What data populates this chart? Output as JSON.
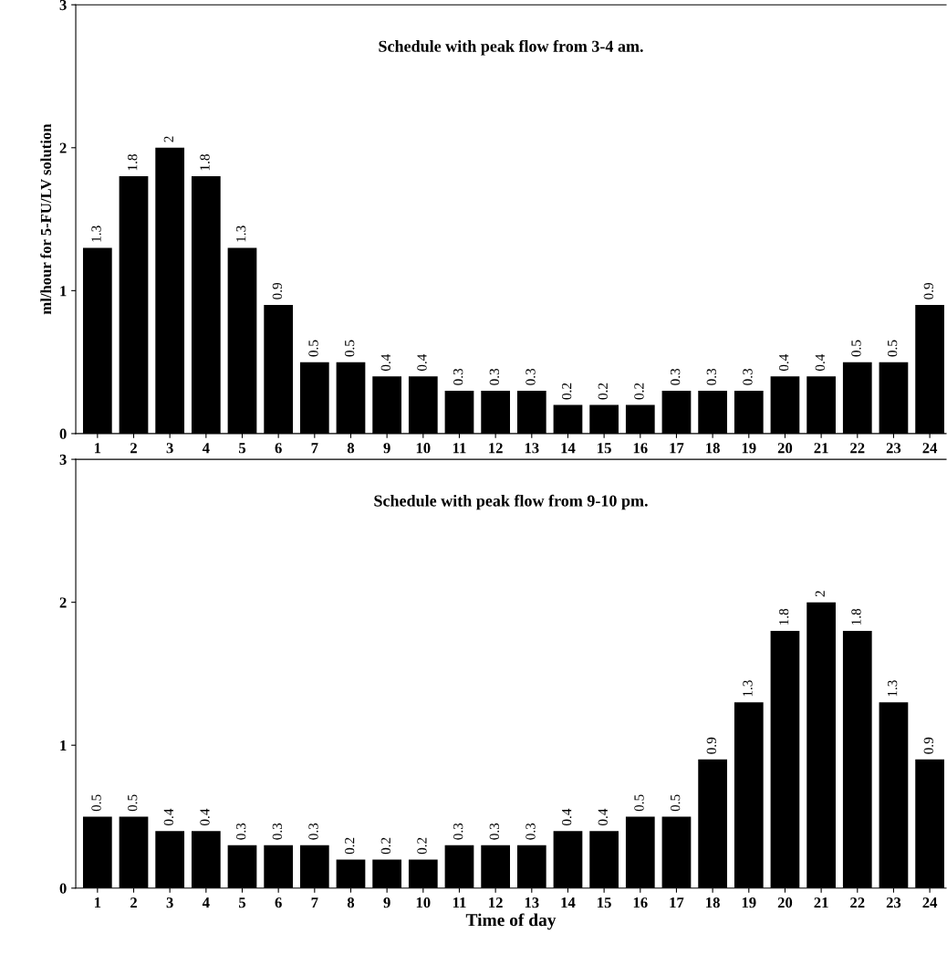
{
  "chart_data": [
    {
      "type": "bar",
      "title": "Schedule with peak flow from 3-4 am.",
      "ylabel": "ml/hour for 5-FU/LV solution",
      "color": "#000000",
      "data_labels": true,
      "grid": false,
      "legend": false,
      "categories": [
        "1",
        "2",
        "3",
        "4",
        "5",
        "6",
        "7",
        "8",
        "9",
        "10",
        "11",
        "12",
        "13",
        "14",
        "15",
        "16",
        "17",
        "18",
        "19",
        "20",
        "21",
        "22",
        "23",
        "24"
      ],
      "values": [
        1.3,
        1.8,
        2,
        1.8,
        1.3,
        0.9,
        0.5,
        0.5,
        0.4,
        0.4,
        0.3,
        0.3,
        0.3,
        0.2,
        0.2,
        0.2,
        0.3,
        0.3,
        0.3,
        0.4,
        0.4,
        0.5,
        0.5,
        0.9
      ],
      "ylim": [
        0,
        3
      ],
      "yticks": [
        0,
        1,
        2,
        3
      ]
    },
    {
      "type": "bar",
      "title": "Schedule with peak flow from 9-10 pm.",
      "xlabel": "Time of day",
      "color": "#000000",
      "data_labels": true,
      "grid": false,
      "legend": false,
      "categories": [
        "1",
        "2",
        "3",
        "4",
        "5",
        "6",
        "7",
        "8",
        "9",
        "10",
        "11",
        "12",
        "13",
        "14",
        "15",
        "16",
        "17",
        "18",
        "19",
        "20",
        "21",
        "22",
        "23",
        "24"
      ],
      "values": [
        0.5,
        0.5,
        0.4,
        0.4,
        0.3,
        0.3,
        0.3,
        0.2,
        0.2,
        0.2,
        0.3,
        0.3,
        0.3,
        0.4,
        0.4,
        0.5,
        0.5,
        0.9,
        1.3,
        1.8,
        2,
        1.8,
        1.3,
        0.9
      ],
      "ylim": [
        0,
        3
      ],
      "yticks": [
        0,
        1,
        2,
        3
      ]
    }
  ]
}
